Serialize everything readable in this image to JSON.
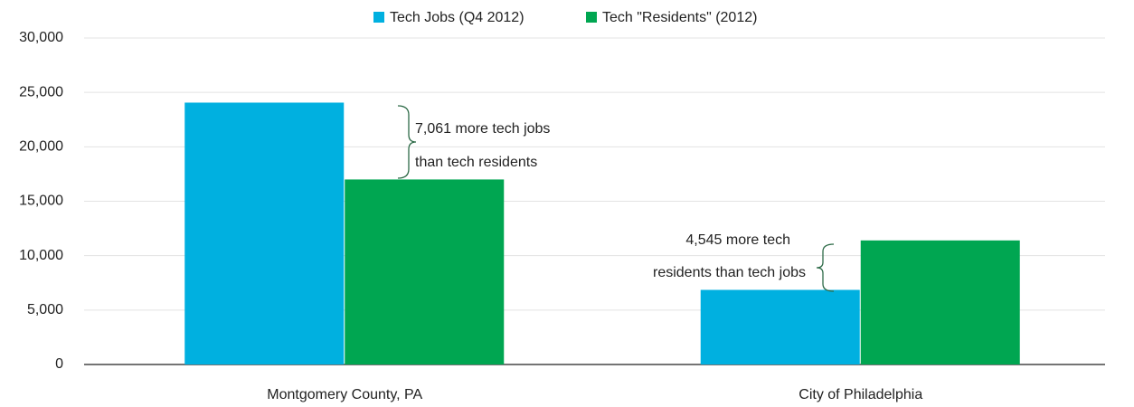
{
  "chart_data": {
    "type": "bar",
    "categories": [
      "Montgomery County, PA",
      "City of Philadelphia"
    ],
    "series": [
      {
        "name": "Tech Jobs (Q4 2012)",
        "color": "#00b0e0",
        "values": [
          24061,
          6855
        ]
      },
      {
        "name": "Tech \"Residents\" (2012)",
        "color": "#00a651",
        "values": [
          17000,
          11400
        ]
      }
    ],
    "ylim": [
      0,
      30000
    ],
    "yticks": [
      0,
      {
        "value": 5000,
        "label": "5,000"
      },
      {
        "value": 10000,
        "label": "10,000"
      },
      {
        "value": 15000,
        "label": "15,000"
      },
      {
        "value": 20000,
        "label": "20,000"
      },
      {
        "value": 25000,
        "label": "25,000"
      },
      {
        "value": 30000,
        "label": "30,000"
      }
    ],
    "grid": true,
    "legend": "top",
    "annotations": [
      {
        "lines": [
          "7,061 more tech jobs",
          "than tech residents"
        ]
      },
      {
        "lines": [
          "4,545 more tech",
          "residents than tech jobs"
        ]
      }
    ]
  }
}
